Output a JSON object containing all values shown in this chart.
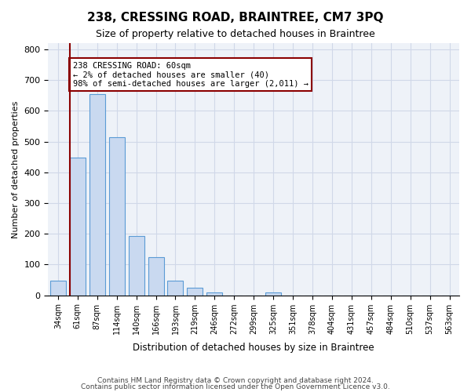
{
  "title": "238, CRESSING ROAD, BRAINTREE, CM7 3PQ",
  "subtitle": "Size of property relative to detached houses in Braintree",
  "xlabel": "Distribution of detached houses by size in Braintree",
  "ylabel": "Number of detached properties",
  "bar_labels": [
    "34sqm",
    "61sqm",
    "87sqm",
    "114sqm",
    "140sqm",
    "166sqm",
    "193sqm",
    "219sqm",
    "246sqm",
    "272sqm",
    "299sqm",
    "325sqm",
    "351sqm",
    "378sqm",
    "404sqm",
    "431sqm",
    "457sqm",
    "484sqm",
    "510sqm",
    "537sqm",
    "563sqm"
  ],
  "bar_values": [
    47,
    447,
    655,
    515,
    193,
    125,
    47,
    25,
    10,
    0,
    0,
    10,
    0,
    0,
    0,
    0,
    0,
    0,
    0,
    0,
    0
  ],
  "bar_color": "#c9d9f0",
  "bar_edge_color": "#5b9bd5",
  "grid_color": "#d0d8e8",
  "background_color": "#eef2f8",
  "red_line_x": 1,
  "annotation_text": "238 CRESSING ROAD: 60sqm\n← 2% of detached houses are smaller (40)\n98% of semi-detached houses are larger (2,011) →",
  "ylim": [
    0,
    820
  ],
  "yticks": [
    0,
    100,
    200,
    300,
    400,
    500,
    600,
    700,
    800
  ],
  "footer_line1": "Contains HM Land Registry data © Crown copyright and database right 2024.",
  "footer_line2": "Contains public sector information licensed under the Open Government Licence v3.0."
}
